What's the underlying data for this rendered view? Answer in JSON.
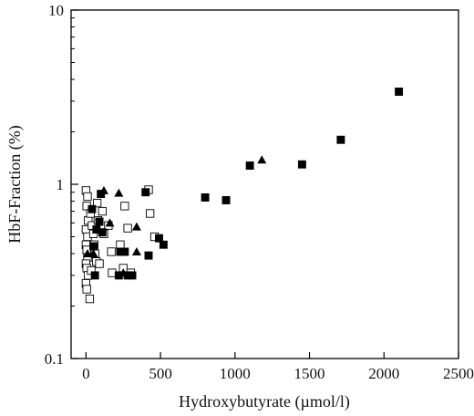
{
  "chart_data": {
    "type": "scatter",
    "title": "",
    "xlabel": "Hydroxybutyrate (µmol/l)",
    "ylabel": "HbF-Fraction (%)",
    "xlim": [
      -100,
      2500
    ],
    "ylim": [
      0.1,
      10
    ],
    "y_scale": "log",
    "grid": false,
    "legend": "none",
    "x_ticks": [
      0,
      500,
      1000,
      1500,
      2000,
      2500
    ],
    "x_tick_labels": [
      "0",
      "500",
      "1000",
      "1500",
      "2000",
      "2500"
    ],
    "y_ticks": [
      0.1,
      1,
      10
    ],
    "y_tick_labels": [
      "0.1",
      "1",
      "10"
    ],
    "series": [
      {
        "marker": "open-square",
        "color": "#000000",
        "points": [
          {
            "x": 0,
            "y": 0.92
          },
          {
            "x": 10,
            "y": 0.85
          },
          {
            "x": 5,
            "y": 0.75
          },
          {
            "x": 15,
            "y": 0.62
          },
          {
            "x": 0,
            "y": 0.55
          },
          {
            "x": 10,
            "y": 0.5
          },
          {
            "x": 0,
            "y": 0.45
          },
          {
            "x": 5,
            "y": 0.42
          },
          {
            "x": 10,
            "y": 0.38
          },
          {
            "x": 0,
            "y": 0.35
          },
          {
            "x": 5,
            "y": 0.33
          },
          {
            "x": 15,
            "y": 0.3
          },
          {
            "x": 0,
            "y": 0.27
          },
          {
            "x": 5,
            "y": 0.25
          },
          {
            "x": 25,
            "y": 0.22
          },
          {
            "x": 40,
            "y": 0.58
          },
          {
            "x": 50,
            "y": 0.52
          },
          {
            "x": 55,
            "y": 0.45
          },
          {
            "x": 60,
            "y": 0.4
          },
          {
            "x": 70,
            "y": 0.36
          },
          {
            "x": 75,
            "y": 0.78
          },
          {
            "x": 80,
            "y": 0.62
          },
          {
            "x": 90,
            "y": 0.35
          },
          {
            "x": 30,
            "y": 0.68
          },
          {
            "x": 35,
            "y": 0.32
          },
          {
            "x": 110,
            "y": 0.7
          },
          {
            "x": 120,
            "y": 0.52
          },
          {
            "x": 150,
            "y": 0.58
          },
          {
            "x": 170,
            "y": 0.41
          },
          {
            "x": 175,
            "y": 0.31
          },
          {
            "x": 230,
            "y": 0.45
          },
          {
            "x": 250,
            "y": 0.33
          },
          {
            "x": 260,
            "y": 0.75
          },
          {
            "x": 280,
            "y": 0.56
          },
          {
            "x": 300,
            "y": 0.31
          },
          {
            "x": 420,
            "y": 0.93
          },
          {
            "x": 430,
            "y": 0.68
          },
          {
            "x": 460,
            "y": 0.5
          }
        ]
      },
      {
        "marker": "filled-square",
        "color": "#000000",
        "points": [
          {
            "x": 40,
            "y": 0.72
          },
          {
            "x": 50,
            "y": 0.44
          },
          {
            "x": 60,
            "y": 0.3
          },
          {
            "x": 70,
            "y": 0.55
          },
          {
            "x": 100,
            "y": 0.88
          },
          {
            "x": 90,
            "y": 0.61
          },
          {
            "x": 110,
            "y": 0.53
          },
          {
            "x": 220,
            "y": 0.3
          },
          {
            "x": 230,
            "y": 0.41
          },
          {
            "x": 260,
            "y": 0.41
          },
          {
            "x": 280,
            "y": 0.3
          },
          {
            "x": 310,
            "y": 0.3
          },
          {
            "x": 400,
            "y": 0.9
          },
          {
            "x": 420,
            "y": 0.39
          },
          {
            "x": 490,
            "y": 0.49
          },
          {
            "x": 520,
            "y": 0.45
          },
          {
            "x": 800,
            "y": 0.84
          },
          {
            "x": 940,
            "y": 0.81
          },
          {
            "x": 1100,
            "y": 1.28
          },
          {
            "x": 1450,
            "y": 1.3
          },
          {
            "x": 1710,
            "y": 1.8
          },
          {
            "x": 2100,
            "y": 3.4
          }
        ]
      },
      {
        "marker": "filled-triangle",
        "color": "#000000",
        "points": [
          {
            "x": 10,
            "y": 0.4
          },
          {
            "x": 50,
            "y": 0.4
          },
          {
            "x": 120,
            "y": 0.92
          },
          {
            "x": 160,
            "y": 0.6
          },
          {
            "x": 220,
            "y": 0.89
          },
          {
            "x": 250,
            "y": 0.31
          },
          {
            "x": 340,
            "y": 0.57
          },
          {
            "x": 340,
            "y": 0.41
          },
          {
            "x": 1180,
            "y": 1.38
          }
        ]
      }
    ]
  }
}
